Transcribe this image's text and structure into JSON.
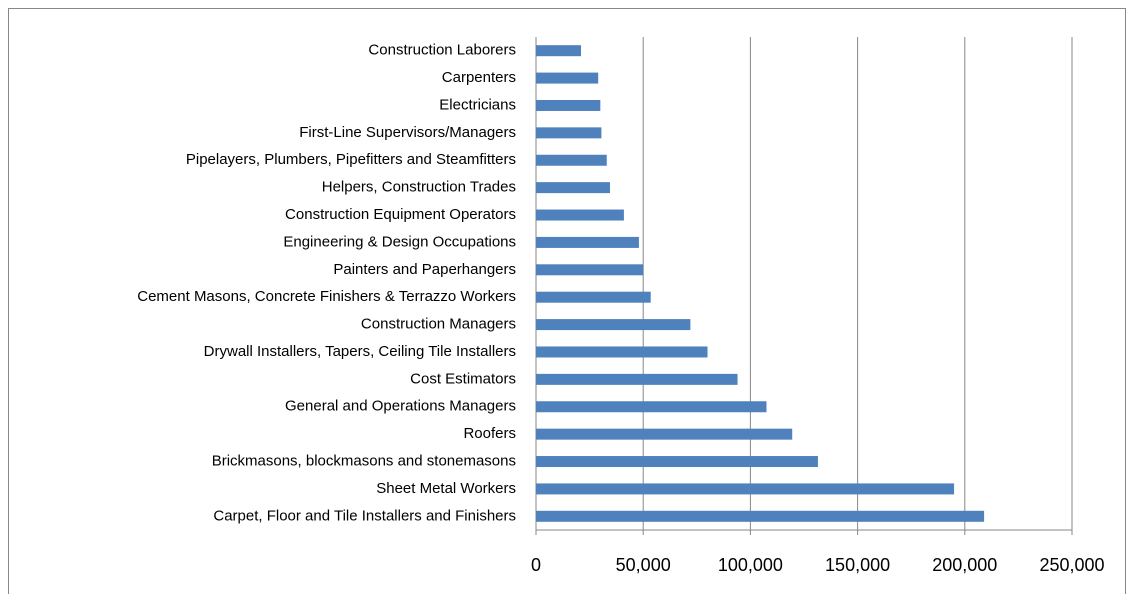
{
  "chart_data": {
    "type": "bar",
    "orientation": "horizontal",
    "categories": [
      "Construction Laborers",
      "Carpenters",
      "Electricians",
      "First-Line Supervisors/Managers",
      "Pipelayers, Plumbers, Pipefitters and Steamfitters",
      "Helpers, Construction Trades",
      "Construction Equipment Operators",
      "Engineering & Design Occupations",
      "Painters and Paperhangers",
      "Cement Masons, Concrete Finishers & Terrazzo Workers",
      "Construction Managers",
      "Drywall Installers, Tapers, Ceiling Tile Installers",
      "Cost Estimators",
      "General and Operations Managers",
      "Roofers",
      "Brickmasons, blockmasons and stonemasons",
      "Sheet Metal Workers",
      "Carpet, Floor and Tile Installers and Finishers"
    ],
    "values": [
      21000,
      29000,
      30000,
      30500,
      33000,
      34500,
      41000,
      48000,
      50000,
      53500,
      72000,
      80000,
      94000,
      107500,
      119500,
      131500,
      195000,
      209000
    ],
    "color": "#4f81bd",
    "xlim": [
      0,
      250000
    ],
    "xticks": [
      0,
      {
        "value": 50000,
        "label": "50,000"
      },
      {
        "value": 100000,
        "label": "100,000"
      },
      {
        "value": 150000,
        "label": "150,000"
      },
      {
        "value": 200000,
        "label": "200,000"
      },
      {
        "value": 250000,
        "label": "250,000"
      }
    ],
    "grid": true
  }
}
